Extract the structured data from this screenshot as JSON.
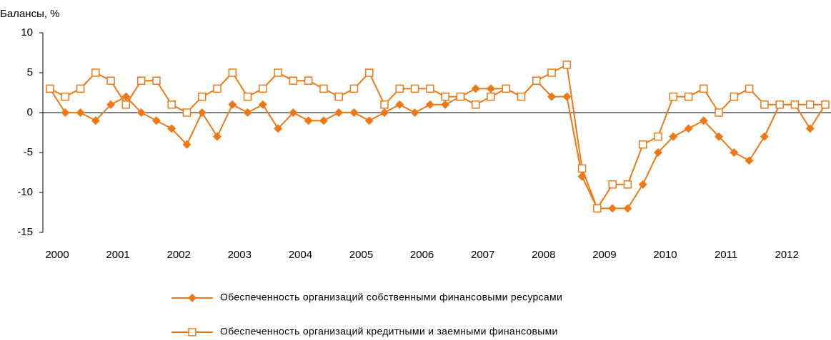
{
  "chart_data": {
    "type": "line",
    "title": "Балансы, %",
    "categories": [
      "2000",
      null,
      null,
      null,
      "2001",
      null,
      null,
      null,
      "2002",
      null,
      null,
      null,
      "2003",
      null,
      null,
      null,
      "2004",
      null,
      null,
      null,
      "2005",
      null,
      null,
      null,
      "2006",
      null,
      null,
      null,
      "2007",
      null,
      null,
      null,
      "2008",
      null,
      null,
      null,
      "2009",
      null,
      null,
      null,
      "2010",
      null,
      null,
      null,
      "2011",
      null,
      null,
      null,
      "2012",
      null,
      null,
      null
    ],
    "series": [
      {
        "name": "Обеспеченность организаций собственными финансовыми ресурсами",
        "color": "#f07814",
        "marker": "diamond",
        "values": [
          3,
          0,
          0,
          -1,
          1,
          2,
          0,
          -1,
          -2,
          -4,
          0,
          -3,
          1,
          0,
          1,
          -2,
          0,
          -1,
          -1,
          0,
          0,
          -1,
          0,
          1,
          0,
          1,
          1,
          2,
          3,
          3,
          3,
          2,
          4,
          2,
          2,
          -8,
          -12,
          -12,
          -12,
          -9,
          -5,
          -3,
          -2,
          -1,
          -3,
          -5,
          -6,
          -3,
          1,
          1,
          -2,
          1
        ]
      },
      {
        "name": "Обеспеченность организаций кредитными и заемными финансовыми",
        "color": "#f07814",
        "marker": "square",
        "values": [
          3,
          2,
          3,
          5,
          4,
          1,
          4,
          4,
          1,
          0,
          2,
          3,
          5,
          2,
          3,
          5,
          4,
          4,
          3,
          2,
          3,
          5,
          1,
          3,
          3,
          3,
          2,
          2,
          1,
          2,
          3,
          2,
          4,
          5,
          6,
          -7,
          -12,
          -9,
          -9,
          -4,
          -3,
          2,
          2,
          3,
          0,
          2,
          3,
          1,
          1,
          1,
          1,
          1
        ]
      }
    ],
    "ylim": [
      -15,
      10
    ],
    "yticks": [
      -15,
      -10,
      -5,
      0,
      5,
      10
    ],
    "grid": false
  }
}
